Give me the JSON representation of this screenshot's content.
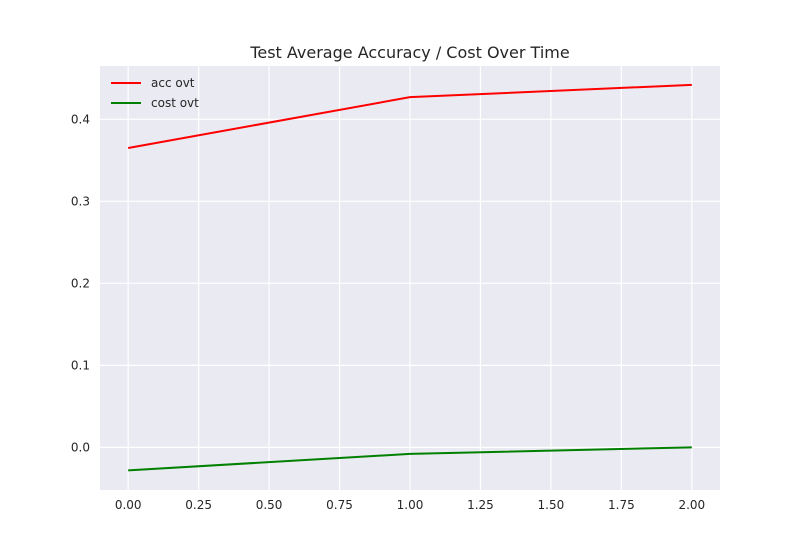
{
  "chart_data": {
    "type": "line",
    "title": "Test Average Accuracy / Cost Over Time",
    "xlabel": "",
    "ylabel": "",
    "x": [
      0,
      1,
      2
    ],
    "series": [
      {
        "name": "acc ovt",
        "color": "#ff0000",
        "values": [
          0.365,
          0.427,
          0.442
        ]
      },
      {
        "name": "cost ovt",
        "color": "#008000",
        "values": [
          -0.028,
          -0.008,
          0.0
        ]
      }
    ],
    "xlim": [
      -0.1,
      2.1
    ],
    "ylim": [
      -0.052,
      0.465
    ],
    "xticks": [
      0.0,
      0.25,
      0.5,
      0.75,
      1.0,
      1.25,
      1.5,
      1.75,
      2.0
    ],
    "xtick_labels": [
      "0.00",
      "0.25",
      "0.50",
      "0.75",
      "1.00",
      "1.25",
      "1.50",
      "1.75",
      "2.00"
    ],
    "yticks": [
      0.0,
      0.1,
      0.2,
      0.3,
      0.4
    ],
    "ytick_labels": [
      "0.0",
      "0.1",
      "0.2",
      "0.3",
      "0.4"
    ],
    "grid": true,
    "legend_position": "top-left",
    "background_color": "#eaeaf2",
    "grid_color": "#ffffff"
  }
}
